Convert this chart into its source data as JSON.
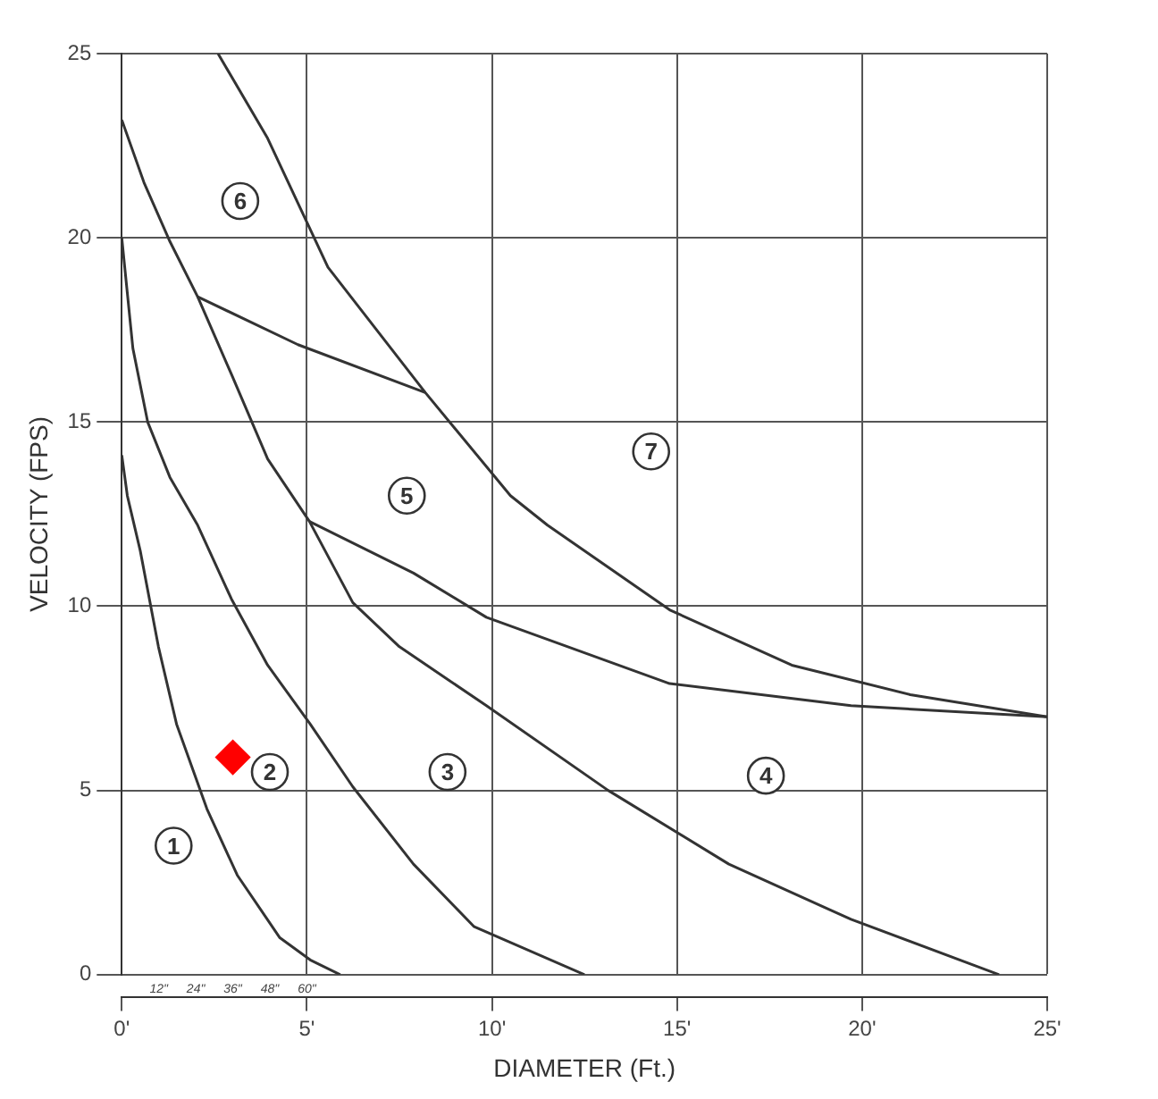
{
  "chart_data": {
    "type": "line",
    "xlabel": "DIAMETER (Ft.)",
    "ylabel": "VELOCITY (FPS)",
    "xlim": [
      0,
      25
    ],
    "ylim": [
      0,
      25
    ],
    "xticks": [
      {
        "value": 0,
        "label": "0'"
      },
      {
        "value": 5,
        "label": "5'"
      },
      {
        "value": 10,
        "label": "10'"
      },
      {
        "value": 15,
        "label": "15'"
      },
      {
        "value": 20,
        "label": "20'"
      },
      {
        "value": 25,
        "label": "25'"
      }
    ],
    "x2lim": [
      0,
      300
    ],
    "x2ticks": [
      {
        "value": 12,
        "label": "12\""
      },
      {
        "value": 24,
        "label": "24\""
      },
      {
        "value": 36,
        "label": "36\""
      },
      {
        "value": 48,
        "label": "48\""
      },
      {
        "value": 60,
        "label": "60\""
      }
    ],
    "yticks": [
      0,
      5,
      10,
      15,
      20,
      25
    ],
    "grid": true,
    "legend": false,
    "marker": "none",
    "line_style": "solid",
    "series": [
      {
        "color": "#333333",
        "x": [
          0,
          0.15,
          0.5,
          0.99,
          1.48,
          2.3,
          3.12,
          4.27,
          5.09,
          5.9
        ],
        "values": [
          14.1,
          13,
          11.5,
          8.9,
          6.8,
          4.5,
          2.7,
          1.0,
          0.4,
          0
        ]
      },
      {
        "color": "#333333",
        "x": [
          0,
          0.3,
          0.7,
          1.3,
          2.05,
          2.96,
          3.94,
          5.09,
          6.24,
          7.88,
          9.52,
          12.5
        ],
        "values": [
          20,
          17,
          15,
          13.5,
          12.2,
          10.2,
          8.4,
          6.8,
          5.1,
          3.0,
          1.3,
          0
        ]
      },
      {
        "color": "#333333",
        "x": [
          0,
          0.6,
          1.3,
          2.05,
          2.96,
          3.94,
          5.07,
          6.24,
          7.5,
          9.85,
          13.14,
          16.4,
          19.7,
          23.7
        ],
        "values": [
          23.2,
          21.5,
          19.9,
          18.4,
          16.3,
          14.0,
          12.3,
          10.1,
          8.9,
          7.3,
          5.0,
          3.0,
          1.5,
          0
        ]
      },
      {
        "color": "#333333",
        "x": [
          2.6,
          3.94,
          5.57,
          8.2,
          10.5,
          11.5,
          14.8,
          18.1,
          21.3,
          25
        ],
        "values": [
          25,
          22.7,
          19.2,
          15.8,
          13.0,
          12.2,
          9.9,
          8.4,
          7.6,
          7.0
        ]
      },
      {
        "color": "#333333",
        "x": [
          2.05,
          4.76,
          8.2
        ],
        "values": [
          18.4,
          17.1,
          15.8
        ]
      },
      {
        "color": "#333333",
        "x": [
          5.07,
          7.88,
          9.85,
          14.8,
          19.7,
          25
        ],
        "values": [
          12.3,
          10.9,
          9.7,
          7.9,
          7.3,
          7.0
        ]
      },
      {
        "type": "scatter",
        "color": "#ff0000",
        "marker": "diamond",
        "x": [
          3.0
        ],
        "values": [
          5.9
        ]
      }
    ],
    "annotations": [
      {
        "text": "1",
        "x": 1.4,
        "y": 3.5
      },
      {
        "text": "2",
        "x": 4.0,
        "y": 5.5
      },
      {
        "text": "3",
        "x": 8.8,
        "y": 5.5
      },
      {
        "text": "4",
        "x": 17.4,
        "y": 5.4
      },
      {
        "text": "5",
        "x": 7.7,
        "y": 13.0
      },
      {
        "text": "6",
        "x": 3.2,
        "y": 21.0
      },
      {
        "text": "7",
        "x": 14.3,
        "y": 14.2
      }
    ]
  }
}
